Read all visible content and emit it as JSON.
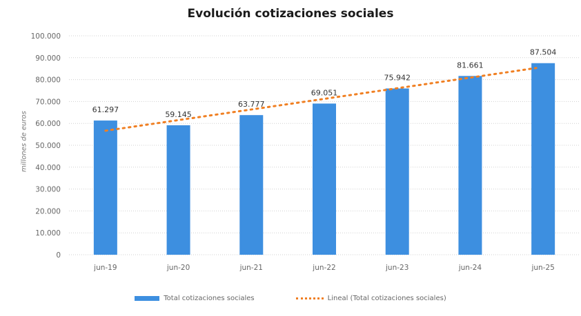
{
  "chart_data": {
    "type": "bar",
    "title": "Evolución cotizaciones sociales",
    "ylabel": "millones de euros",
    "xlabel": "",
    "categories": [
      "jun-19",
      "jun-20",
      "jun-21",
      "jun-22",
      "jun-23",
      "jun-24",
      "jun-25"
    ],
    "series": [
      {
        "name": "Total cotizaciones sociales",
        "values": [
          61297,
          59145,
          63777,
          69051,
          75942,
          81661,
          87504
        ],
        "color": "#3d8fe0"
      }
    ],
    "data_labels": [
      "61.297",
      "59.145",
      "63.777",
      "69.051",
      "75.942",
      "81.661",
      "87.504"
    ],
    "trendline": {
      "name": "Lineal (Total cotizaciones sociales)",
      "type": "linear",
      "color": "#f07f22",
      "style": "dotted"
    },
    "ylim": [
      0,
      100000
    ],
    "yticks": [
      "0",
      "10.000",
      "20.000",
      "30.000",
      "40.000",
      "50.000",
      "60.000",
      "70.000",
      "80.000",
      "90.000",
      "100.000"
    ],
    "grid": true,
    "legend": "bottom"
  }
}
